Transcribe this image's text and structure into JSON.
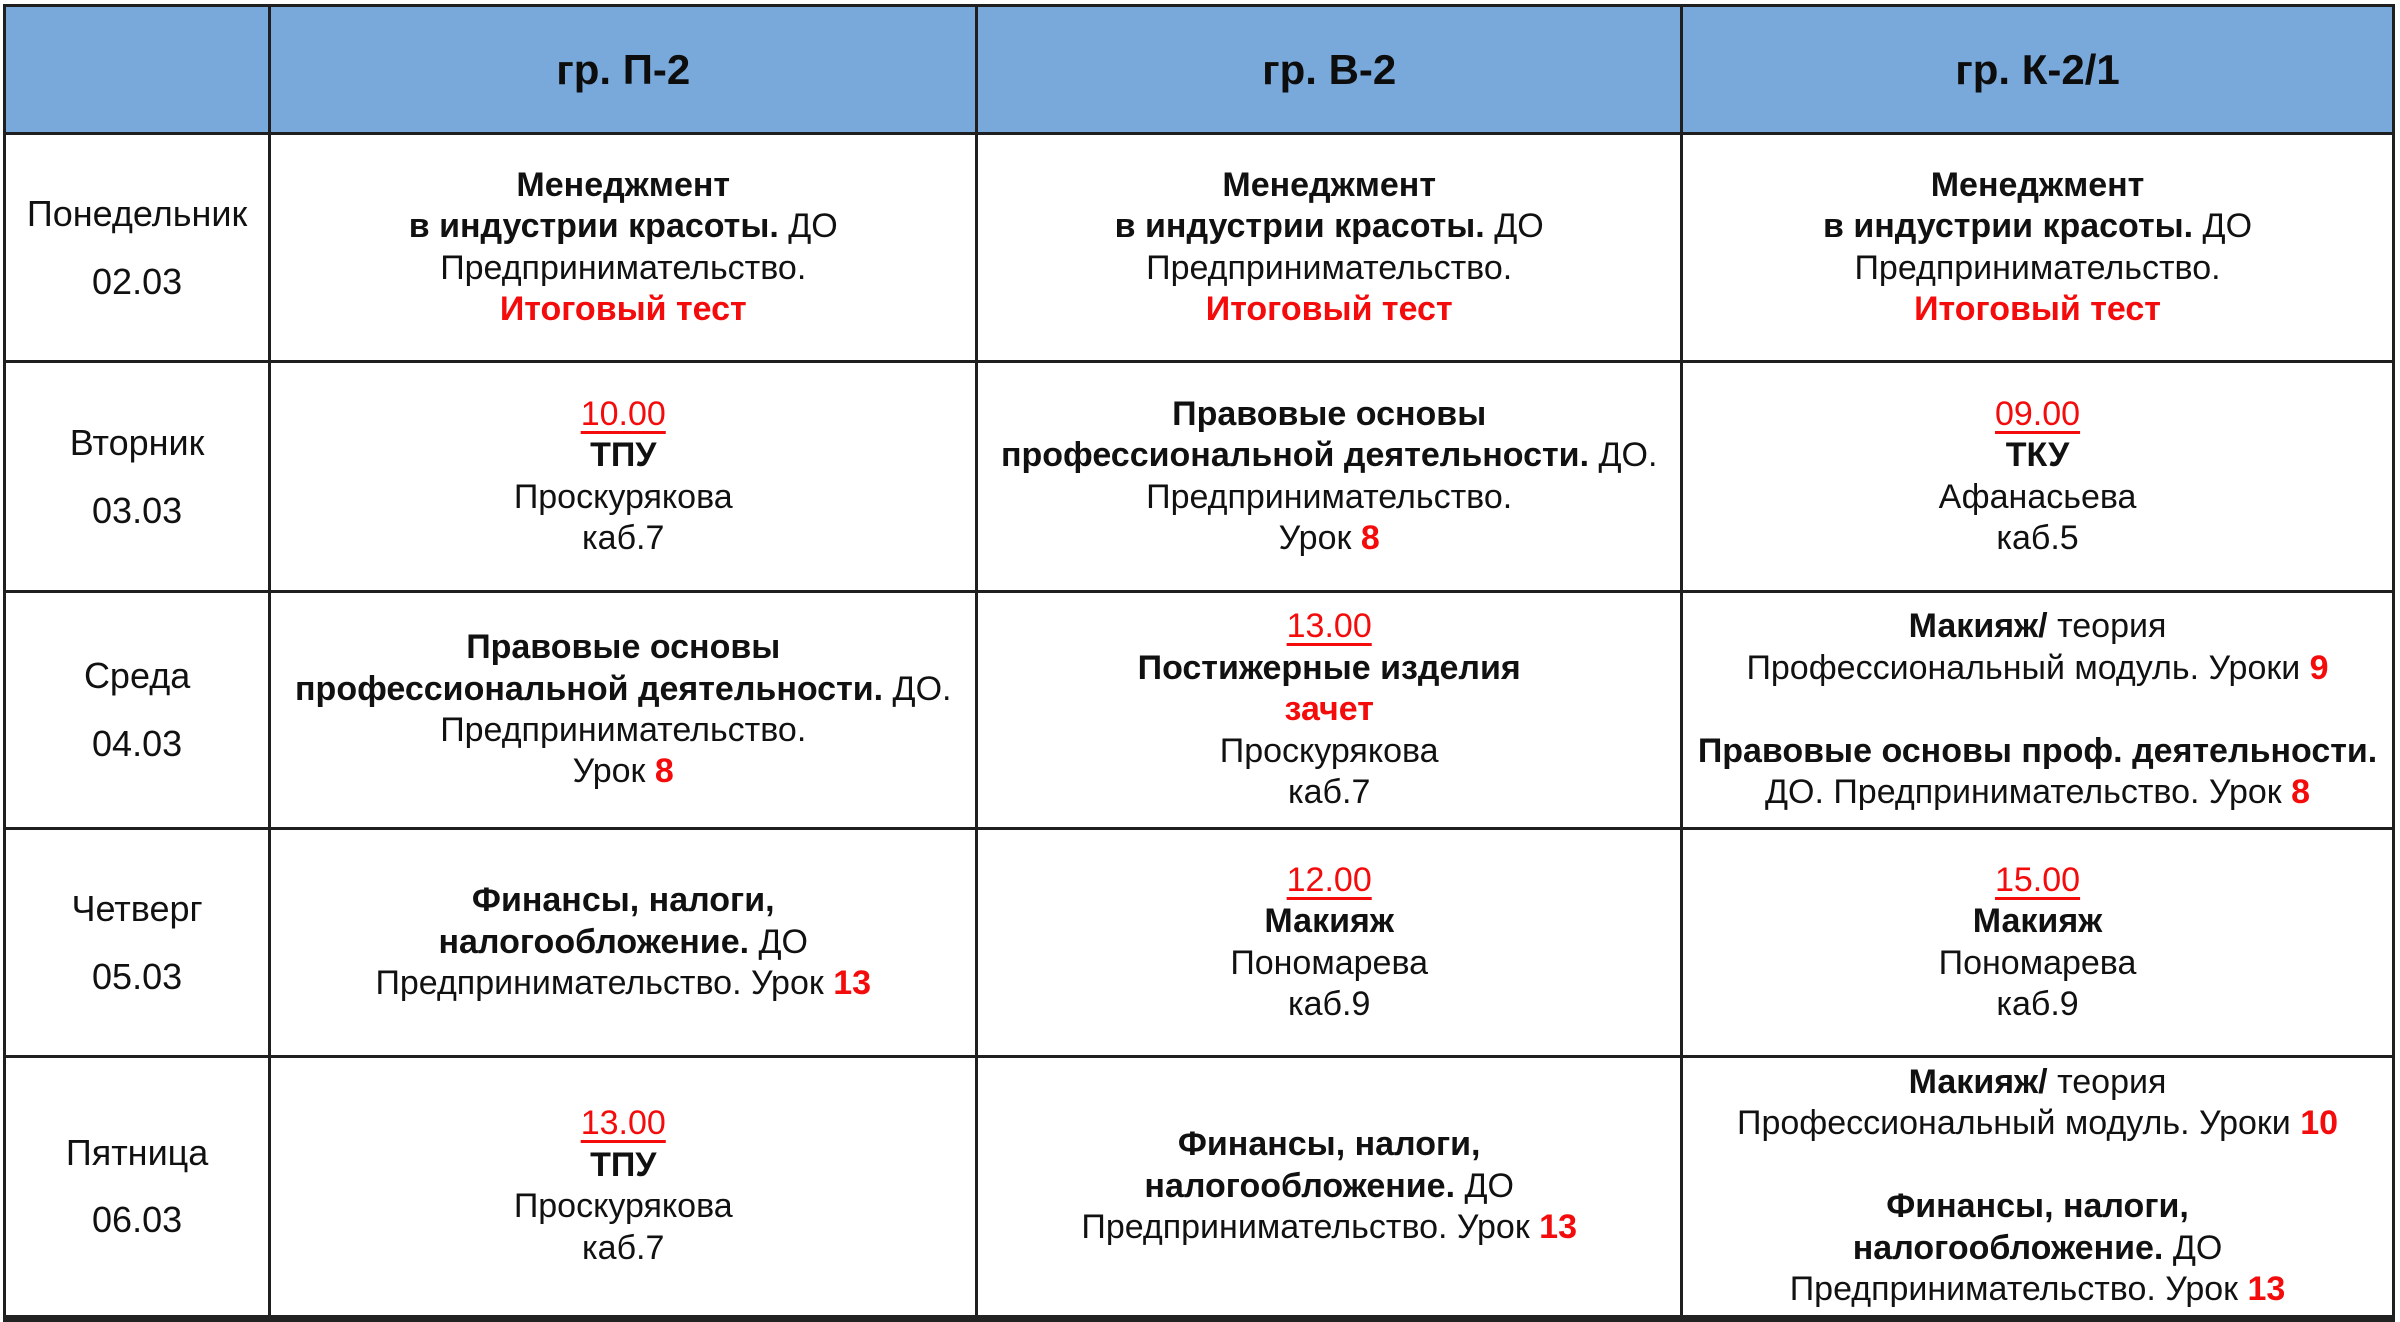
{
  "colors": {
    "header_bg": "#79a8da",
    "accent_red": "#f40b0b",
    "grid": "#1f1f1f",
    "text": "#111111",
    "page_bg": "#ffffff"
  },
  "table": {
    "header": {
      "day_column_label": "",
      "groups": [
        "гр. П-2",
        "гр. В-2",
        "гр. К-2/1"
      ],
      "group_keys": [
        "p2",
        "v2",
        "k21"
      ]
    },
    "rows": [
      {
        "key": "monday",
        "day": [
          "Понедельник",
          "02.03"
        ],
        "cells": [
          [
            [
              {
                "t": "Менеджмент",
                "b": true
              }
            ],
            [
              {
                "t": "в индустрии красоты.",
                "b": true
              },
              {
                "t": " ДО"
              }
            ],
            [
              {
                "t": "Предпринимательство."
              }
            ],
            [
              {
                "t": "Итоговый тест",
                "b": true,
                "r": true
              }
            ]
          ],
          [
            [
              {
                "t": "Менеджмент",
                "b": true
              }
            ],
            [
              {
                "t": "в индустрии красоты.",
                "b": true
              },
              {
                "t": " ДО"
              }
            ],
            [
              {
                "t": "Предпринимательство."
              }
            ],
            [
              {
                "t": "Итоговый тест",
                "b": true,
                "r": true
              }
            ]
          ],
          [
            [
              {
                "t": "Менеджмент",
                "b": true
              }
            ],
            [
              {
                "t": "в индустрии красоты.",
                "b": true
              },
              {
                "t": " ДО"
              }
            ],
            [
              {
                "t": "Предпринимательство."
              }
            ],
            [
              {
                "t": "Итоговый тест",
                "b": true,
                "r": true
              }
            ]
          ]
        ]
      },
      {
        "key": "tuesday",
        "day": [
          "Вторник",
          "03.03"
        ],
        "cells": [
          [
            [
              {
                "t": "10.00",
                "r": true,
                "u": true
              }
            ],
            [
              {
                "t": "ТПУ",
                "b": true
              }
            ],
            [
              {
                "t": "Проскурякова"
              }
            ],
            [
              {
                "t": "каб.7"
              }
            ]
          ],
          [
            [
              {
                "t": "Правовые основы",
                "b": true
              }
            ],
            [
              {
                "t": "профессиональной деятельности.",
                "b": true
              },
              {
                "t": " ДО."
              }
            ],
            [
              {
                "t": "Предпринимательство."
              }
            ],
            [
              {
                "t": "Урок "
              },
              {
                "t": "8",
                "b": true,
                "r": true
              }
            ]
          ],
          [
            [
              {
                "t": "09.00",
                "r": true,
                "u": true
              }
            ],
            [
              {
                "t": "ТКУ",
                "b": true
              }
            ],
            [
              {
                "t": "Афанасьева"
              }
            ],
            [
              {
                "t": "каб.5"
              }
            ]
          ]
        ]
      },
      {
        "key": "wednesday",
        "day": [
          "Среда",
          "04.03"
        ],
        "cells": [
          [
            [
              {
                "t": "Правовые основы",
                "b": true
              }
            ],
            [
              {
                "t": "профессиональной деятельности.",
                "b": true
              },
              {
                "t": " ДО."
              }
            ],
            [
              {
                "t": "Предпринимательство."
              }
            ],
            [
              {
                "t": "Урок "
              },
              {
                "t": "8",
                "b": true,
                "r": true
              }
            ]
          ],
          [
            [
              {
                "t": "13.00",
                "r": true,
                "u": true
              }
            ],
            [
              {
                "t": "Постижерные изделия",
                "b": true
              }
            ],
            [
              {
                "t": "зачет",
                "b": true,
                "r": true
              }
            ],
            [
              {
                "t": "Проскурякова"
              }
            ],
            [
              {
                "t": "каб.7"
              }
            ]
          ],
          [
            [
              {
                "t": "Макияж/",
                "b": true
              },
              {
                "t": " теория"
              }
            ],
            [
              {
                "t": "Профессиональный модуль. Уроки "
              },
              {
                "t": "9",
                "b": true,
                "r": true
              }
            ],
            [],
            [
              {
                "t": "Правовые основы проф. деятельности.",
                "b": true
              }
            ],
            [
              {
                "t": "ДО. Предпринимательство. Урок "
              },
              {
                "t": "8",
                "b": true,
                "r": true
              }
            ]
          ]
        ]
      },
      {
        "key": "thursday",
        "day": [
          "Четверг",
          "05.03"
        ],
        "cells": [
          [
            [
              {
                "t": "Финансы, налоги,",
                "b": true
              }
            ],
            [
              {
                "t": "налогообложение.",
                "b": true
              },
              {
                "t": " ДО"
              }
            ],
            [
              {
                "t": "Предпринимательство. Урок "
              },
              {
                "t": "13",
                "b": true,
                "r": true
              }
            ]
          ],
          [
            [
              {
                "t": "12.00",
                "r": true,
                "u": true
              }
            ],
            [
              {
                "t": "Макияж",
                "b": true
              }
            ],
            [
              {
                "t": "Пономарева"
              }
            ],
            [
              {
                "t": "каб.9"
              }
            ]
          ],
          [
            [
              {
                "t": "15.00",
                "r": true,
                "u": true
              }
            ],
            [
              {
                "t": "Макияж",
                "b": true
              }
            ],
            [
              {
                "t": "Пономарева"
              }
            ],
            [
              {
                "t": "каб.9"
              }
            ]
          ]
        ]
      },
      {
        "key": "friday",
        "day": [
          "Пятница",
          "06.03"
        ],
        "cells": [
          [
            [
              {
                "t": "13.00",
                "r": true,
                "u": true
              }
            ],
            [
              {
                "t": "ТПУ",
                "b": true
              }
            ],
            [
              {
                "t": "Проскурякова"
              }
            ],
            [
              {
                "t": "каб.7"
              }
            ]
          ],
          [
            [
              {
                "t": "Финансы, налоги,",
                "b": true
              }
            ],
            [
              {
                "t": "налогообложение.",
                "b": true
              },
              {
                "t": " ДО"
              }
            ],
            [
              {
                "t": "Предпринимательство. Урок "
              },
              {
                "t": "13",
                "b": true,
                "r": true
              }
            ]
          ],
          [
            [
              {
                "t": "Макияж/",
                "b": true
              },
              {
                "t": " теория"
              }
            ],
            [
              {
                "t": "Профессиональный модуль. Уроки "
              },
              {
                "t": "10",
                "b": true,
                "r": true
              }
            ],
            [],
            [
              {
                "t": "Финансы, налоги,",
                "b": true
              }
            ],
            [
              {
                "t": "налогообложение.",
                "b": true
              },
              {
                "t": " ДО"
              }
            ],
            [
              {
                "t": "Предпринимательство. Урок "
              },
              {
                "t": "13",
                "b": true,
                "r": true
              }
            ]
          ]
        ]
      }
    ]
  }
}
